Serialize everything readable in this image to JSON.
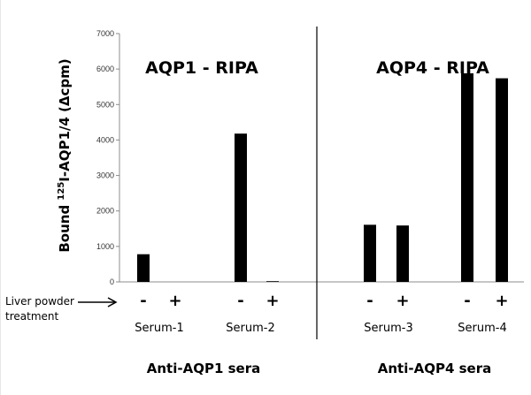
{
  "chart_data": {
    "type": "bar",
    "ylabel_prefix": "Bound ",
    "ylabel_sup": "125",
    "ylabel_suffix": "I-AQP1/4 (Δcpm)",
    "ylim": [
      0,
      7000
    ],
    "yticks": [
      0,
      1000,
      2000,
      3000,
      4000,
      5000,
      6000,
      7000
    ],
    "grid": false,
    "panels": [
      {
        "title": "AQP1 - RIPA",
        "group_label": "Anti-AQP1  sera",
        "sera": [
          {
            "label": "Serum-1",
            "values": [
              780,
              0
            ]
          },
          {
            "label": "Serum-2",
            "values": [
              4180,
              20
            ]
          }
        ]
      },
      {
        "title": "AQP4 - RIPA",
        "group_label": "Anti-AQP4 sera",
        "sera": [
          {
            "label": "Serum-3",
            "values": [
              1610,
              1590
            ]
          },
          {
            "label": "Serum-4",
            "values": [
              5880,
              5740
            ]
          }
        ]
      }
    ],
    "treatment_signs": [
      "-",
      "+"
    ],
    "row_label_line1": "Liver powder",
    "row_label_line2": "treatment",
    "bar_color": "#000000"
  }
}
